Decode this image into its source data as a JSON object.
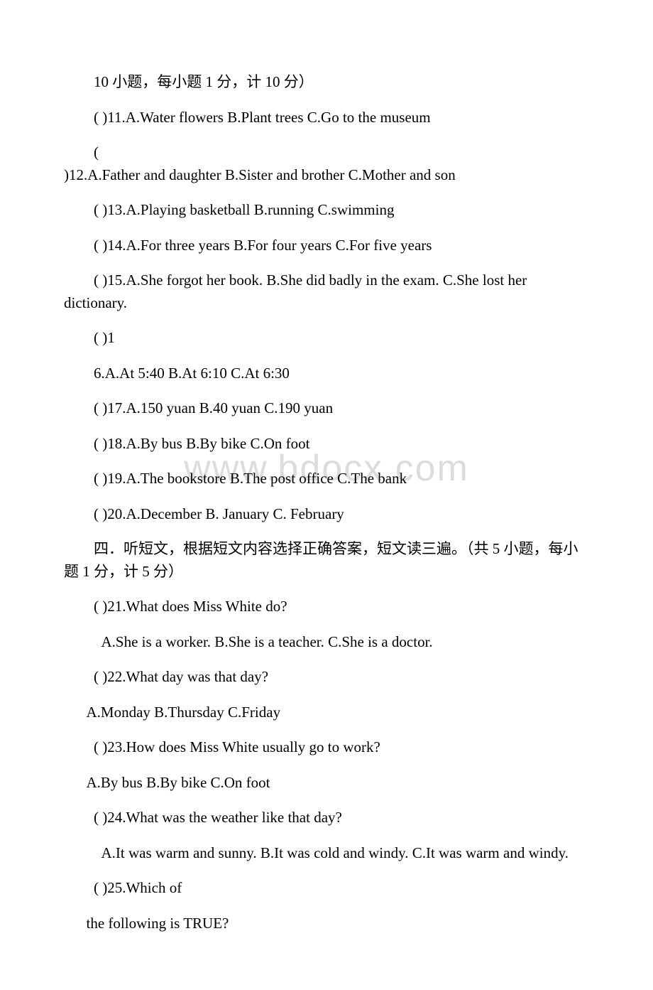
{
  "watermark": "www.bdocx.com",
  "lines": [
    {
      "text": "10 小题，每小题 1 分，计 10 分）",
      "class": "indent"
    },
    {
      "text": "( )11.A.Water flowers   B.Plant trees   C.Go to the museum",
      "class": "indent"
    },
    {
      "text": "(",
      "class": "indent"
    },
    {
      "text": ")12.A.Father and daughter   B.Sister and brother     C.Mother and son",
      "class": "no-indent"
    },
    {
      "text": "( )13.A.Playing basketball   B.running    C.swimming",
      "class": "indent"
    },
    {
      "text": "( )14.A.For three years  B.For four years    C.For five years",
      "class": "indent"
    },
    {
      "text": "( )15.A.She forgot her book.   B.She did badly in the exam.    C.She lost her dictionary.",
      "class": "indent",
      "wrap": true
    },
    {
      "text": "( )1",
      "class": "indent"
    },
    {
      "text": "6.A.At 5:40   B.At 6:10   C.At 6:30",
      "class": "indent"
    },
    {
      "text": "( )17.A.150 yuan   B.40 yuan    C.190 yuan",
      "class": "indent"
    },
    {
      "text": "( )18.A.By bus   B.By bike   C.On foot",
      "class": "indent"
    },
    {
      "text": "( )19.A.The bookstore   B.The post office   C.The bank",
      "class": "indent"
    },
    {
      "text": "( )20.A.December   B. January   C. February",
      "class": "indent"
    },
    {
      "text": "四．听短文，根据短文内容选择正确答案，短文读三遍。（共 5 小题，每小题 1 分，计 5 分）",
      "class": "indent",
      "wrap": true
    },
    {
      "text": "( )21.What does Miss White do?",
      "class": "indent"
    },
    {
      "text": "A.She is a worker.  B.She is a teacher.       C.She is a doctor.",
      "class": "indent-more"
    },
    {
      "text": "( )22.What day was that day?",
      "class": "indent"
    },
    {
      "text": " A.Monday       B.Thursday       C.Friday",
      "class": "indent-small"
    },
    {
      "text": "( )23.How does Miss White usually go to work?",
      "class": "indent"
    },
    {
      "text": " A.By bus       B.By bike       C.On foot",
      "class": "indent-small"
    },
    {
      "text": "( )24.What was the weather like that day?",
      "class": "indent"
    },
    {
      "text": "A.It was warm and sunny.                      B.It was cold and windy.    C.It was warm and windy.",
      "class": "indent-more",
      "wrap": true
    },
    {
      "text": "( )25.Which of",
      "class": "indent"
    },
    {
      "text": " the following is TRUE?",
      "class": "indent-small"
    }
  ]
}
